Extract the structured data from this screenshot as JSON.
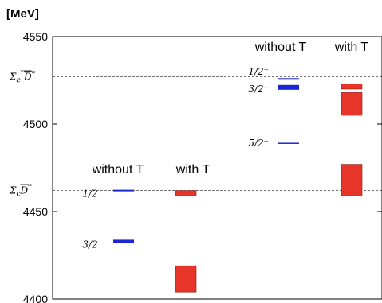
{
  "chart_data": {
    "type": "level-spectrum",
    "unit_label": "[MeV]",
    "y_range": [
      4400,
      4550
    ],
    "y_ticks": [
      4400,
      4450,
      4500,
      4550
    ],
    "thresholds": [
      {
        "label": "Σc D̄",
        "label_base": "Σ",
        "label_sub": "c",
        "label_bar": "D",
        "star": false,
        "value": 4462
      },
      {
        "label": "Σc* D̄*",
        "label_base": "Σ",
        "label_sub": "c",
        "label_bar": "D",
        "star": true,
        "value": 4527
      }
    ],
    "groups": [
      {
        "title": "without T",
        "kind": "line",
        "color": "#1a25d6",
        "levels": [
          {
            "label": "1/2⁻",
            "value": 4462,
            "thickness": 2
          },
          {
            "label": "3/2⁻",
            "value": 4433,
            "thickness": 4
          }
        ]
      },
      {
        "title": "with T",
        "kind": "box",
        "color": "#e8352a",
        "levels": [
          {
            "label": "",
            "lower": 4459,
            "upper": 4462
          },
          {
            "label": "",
            "lower": 4404,
            "upper": 4419
          }
        ]
      },
      {
        "title": "without T",
        "kind": "line",
        "color": "#1a25d6",
        "levels": [
          {
            "label": "1/2⁻",
            "value": 4526,
            "thickness": 1
          },
          {
            "label": "3/2⁻",
            "value": 4521,
            "thickness": 6
          },
          {
            "label": "5/2⁻",
            "value": 4489,
            "thickness": 1.5
          }
        ]
      },
      {
        "title": "with T",
        "kind": "box",
        "color": "#e8352a",
        "levels": [
          {
            "label": "",
            "lower": 4520,
            "upper": 4523
          },
          {
            "label": "",
            "lower": 4505,
            "upper": 4518
          },
          {
            "label": "",
            "lower": 4459,
            "upper": 4477
          }
        ]
      }
    ]
  }
}
